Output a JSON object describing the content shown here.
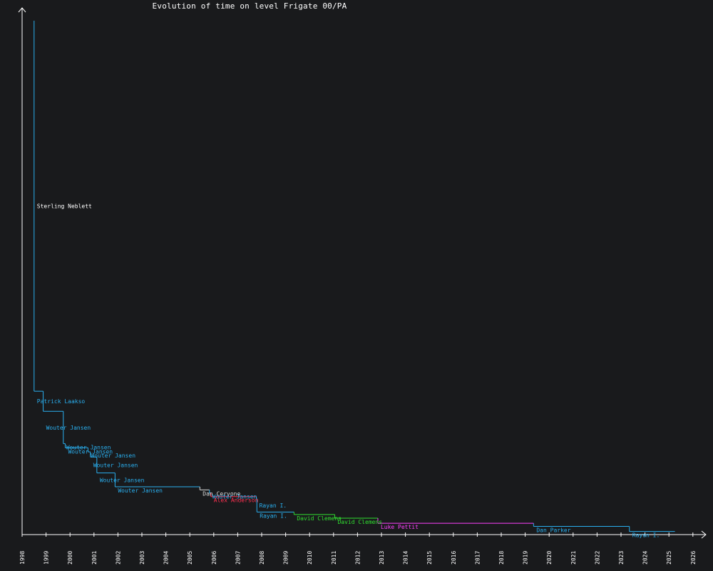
{
  "chart_data": {
    "type": "line",
    "title": "Evolution of time on level Frigate 00/PA",
    "xlabel": "",
    "ylabel": "",
    "x_ticks": [
      "1998",
      "1999",
      "2000",
      "2001",
      "2002",
      "2003",
      "2004",
      "2005",
      "2006",
      "2007",
      "2008",
      "2009",
      "2010",
      "2011",
      "2012",
      "2013",
      "2014",
      "2015",
      "2016",
      "2017",
      "2018",
      "2019",
      "2020",
      "2021",
      "2022",
      "2023",
      "2024",
      "2025",
      "2026"
    ],
    "xlim": [
      1998.0,
      2026.5
    ],
    "ylim": [
      0,
      100
    ],
    "y_scale": "linear, no y tick labels shown",
    "grid": false,
    "legend": "none (records labelled inline with holder name)",
    "end_date": 2025.25,
    "series": [
      {
        "holder": "Sterling Neblett",
        "date": 1998.5,
        "value": 100.0,
        "color": "#ff3030"
      },
      {
        "holder": "Patrick Laakso",
        "date": 1998.5,
        "value": 27.9,
        "color": "#2ab0f0"
      },
      {
        "holder": "Wouter Jansen",
        "date": 1998.88,
        "value": 24.0,
        "color": "#2ab0f0"
      },
      {
        "holder": "Wouter Jansen",
        "date": 1999.72,
        "value": 17.7,
        "color": "#2ab0f0"
      },
      {
        "holder": "Wouter Jansen",
        "date": 1999.8,
        "value": 16.9,
        "color": "#2ab0f0"
      },
      {
        "holder": "Wouter Jansen",
        "date": 2000.75,
        "value": 16.1,
        "color": "#2ab0f0"
      },
      {
        "holder": "Wouter Jansen",
        "date": 2000.85,
        "value": 15.1,
        "color": "#2ab0f0"
      },
      {
        "holder": "Wouter Jansen",
        "date": 2001.12,
        "value": 12.0,
        "color": "#2ab0f0"
      },
      {
        "holder": "Wouter Jansen",
        "date": 2001.88,
        "value": 9.3,
        "color": "#2ab0f0"
      },
      {
        "holder": "Dan Cervone",
        "date": 2005.42,
        "value": 8.7,
        "color": "#dddddd"
      },
      {
        "holder": "Wouter Jansen",
        "date": 2005.82,
        "value": 8.1,
        "color": "#2ab0f0"
      },
      {
        "holder": "Alex Anderson",
        "date": 2005.88,
        "value": 7.4,
        "color": "#ff3050"
      },
      {
        "holder": "Rayan I.",
        "date": 2007.78,
        "value": 7.0,
        "color": "#2ab0f0"
      },
      {
        "holder": "Rayan I.",
        "date": 2007.8,
        "value": 4.4,
        "color": "#2ab0f0"
      },
      {
        "holder": "David Clemens",
        "date": 2009.35,
        "value": 3.9,
        "color": "#30e030"
      },
      {
        "holder": "David Clemens",
        "date": 2011.05,
        "value": 3.2,
        "color": "#30e030"
      },
      {
        "holder": "Luke Pettit",
        "date": 2012.85,
        "value": 2.2,
        "color": "#ff40ff"
      },
      {
        "holder": "Dan Parker",
        "date": 2019.35,
        "value": 1.6,
        "color": "#2ab0f0"
      },
      {
        "holder": "Rayan I.",
        "date": 2023.35,
        "value": 0.6,
        "color": "#2ab0f0"
      }
    ]
  },
  "colors": {
    "background": "#191a1c",
    "axis": "#ffffff",
    "text": "#ffffff"
  }
}
